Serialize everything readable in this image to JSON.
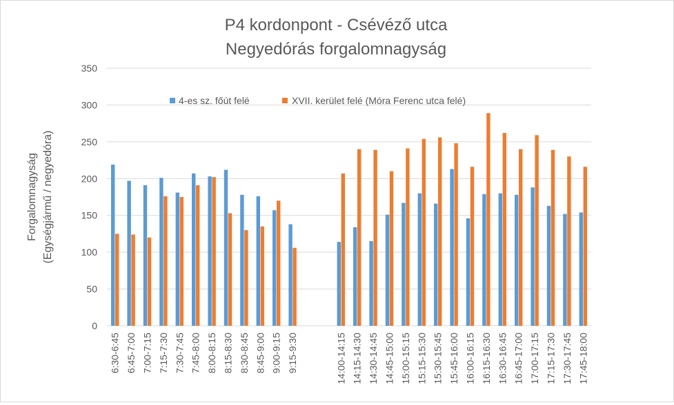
{
  "chart_data": {
    "type": "bar",
    "title": "P4 kordonpont - Csévéző utca",
    "subtitle": "Negyedórás forgalomnagyság",
    "ylabel_line1": "Forgalomnagyság",
    "ylabel_line2": "(Egységjármű / negyedóra)",
    "xlabel": "",
    "ylim": [
      0,
      350
    ],
    "yticks": [
      0,
      50,
      100,
      150,
      200,
      250,
      300,
      350
    ],
    "grid": true,
    "legend_position": "top",
    "categories": [
      "6:30-6:45",
      "6:45-7:00",
      "7:00-7:15",
      "7:15-7:30",
      "7:30-7:45",
      "7:45-8:00",
      "8:00-8:15",
      "8:15-8:30",
      "8:30-8:45",
      "8:45-9:00",
      "9:00-9:15",
      "9:15-9:30",
      "",
      "",
      "14:00-14:15",
      "14:15-14:30",
      "14:30-14:45",
      "14:45-15:00",
      "15:00-15:15",
      "15:15-15:30",
      "15:30-15:45",
      "15:45-16:00",
      "16:00-16:15",
      "16:15-16:30",
      "16:30-16:45",
      "16:45-17:00",
      "17:00-17:15",
      "17:15-17:30",
      "17:30-17:45",
      "17:45-18:00"
    ],
    "series": [
      {
        "name": "4-es sz. főút felé",
        "color": "#5b9bd5",
        "values": [
          219,
          197,
          191,
          201,
          181,
          207,
          203,
          212,
          178,
          176,
          157,
          138,
          null,
          null,
          114,
          134,
          115,
          151,
          167,
          180,
          166,
          213,
          146,
          179,
          180,
          178,
          188,
          163,
          152,
          154
        ]
      },
      {
        "name": "XVII. kerület felé (Móra Ferenc utca felé)",
        "color": "#ed7d31",
        "values": [
          125,
          124,
          120,
          176,
          175,
          191,
          202,
          153,
          130,
          135,
          170,
          106,
          null,
          null,
          207,
          240,
          239,
          210,
          241,
          254,
          256,
          248,
          216,
          289,
          262,
          240,
          259,
          239,
          230,
          216
        ]
      }
    ]
  }
}
